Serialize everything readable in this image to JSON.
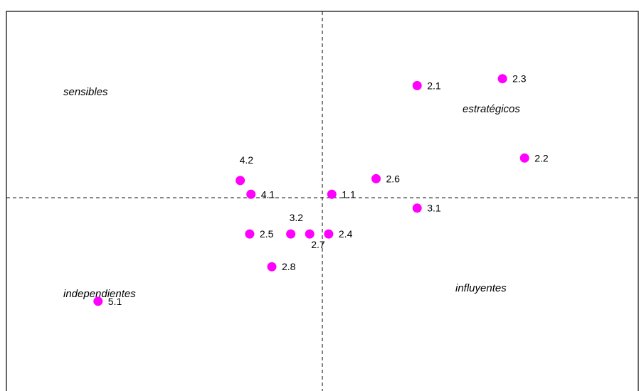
{
  "chart_data": {
    "type": "scatter",
    "title": "",
    "xlabel": "",
    "ylabel": "",
    "grid": false,
    "point_color": "#FF00FF",
    "divider_style": "dashed",
    "points": [
      {
        "label": "2.1",
        "x": 6.5,
        "y": 7.35
      },
      {
        "label": "2.3",
        "x": 7.85,
        "y": 7.55
      },
      {
        "label": "2.2",
        "x": 8.2,
        "y": 5.25
      },
      {
        "label": "2.6",
        "x": 5.85,
        "y": 4.65
      },
      {
        "label": "1.1",
        "x": 5.15,
        "y": 4.2
      },
      {
        "label": "3.1",
        "x": 6.5,
        "y": 3.8
      },
      {
        "label": "4.2",
        "x": 3.7,
        "y": 4.6
      },
      {
        "label": "4.1",
        "x": 3.87,
        "y": 4.2
      },
      {
        "label": "3.2",
        "x": 4.5,
        "y": 3.05
      },
      {
        "label": "2.5",
        "x": 3.85,
        "y": 3.05
      },
      {
        "label": "2.7",
        "x": 4.8,
        "y": 3.05
      },
      {
        "label": "2.4",
        "x": 5.1,
        "y": 3.05
      },
      {
        "label": "2.8",
        "x": 4.2,
        "y": 2.1
      },
      {
        "label": "5.1",
        "x": 1.45,
        "y": 1.1
      }
    ],
    "divider_x": 5.0,
    "divider_y": 4.1,
    "xlim": [
      0,
      10
    ],
    "ylim": [
      -1.5,
      9.5
    ],
    "quadrant_labels": [
      "sensibles",
      "estratégicos",
      "independientes",
      "influyentes"
    ]
  }
}
